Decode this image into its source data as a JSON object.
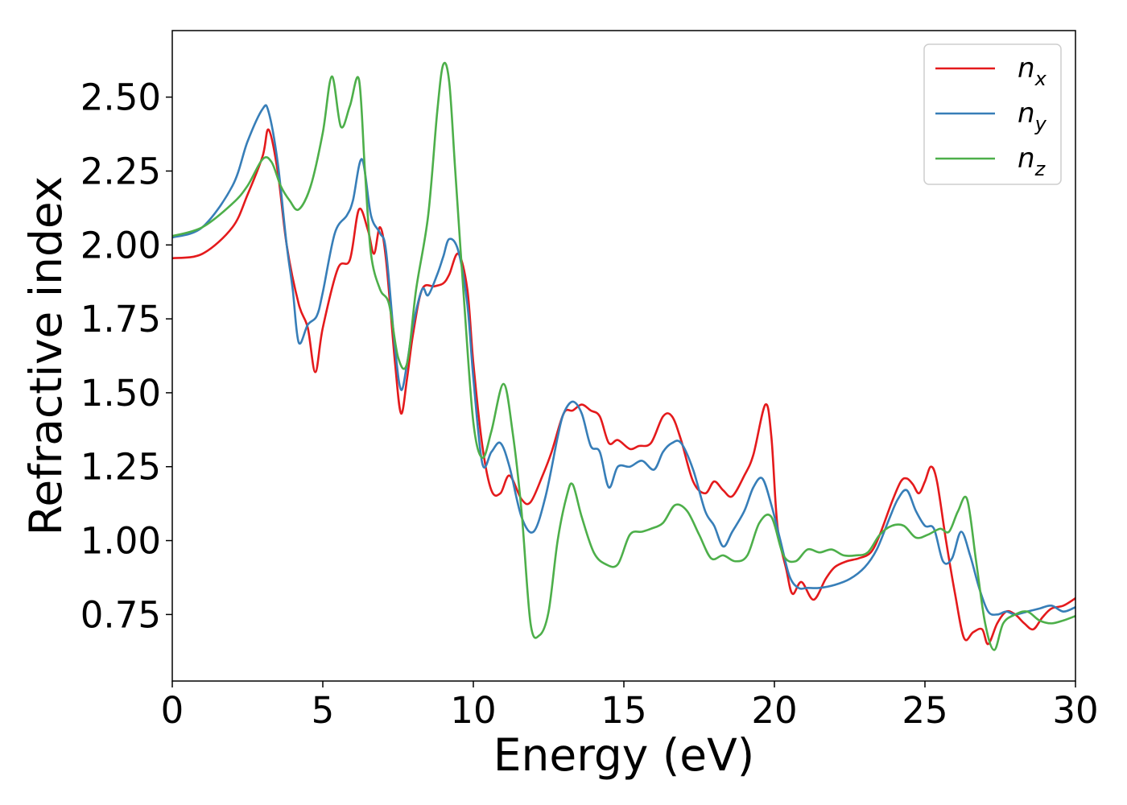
{
  "chart_data": {
    "type": "line",
    "title": "",
    "xlabel": "Energy (eV)",
    "ylabel": "Refractive index",
    "xlim": [
      0,
      30
    ],
    "ylim": [
      0.525,
      2.725
    ],
    "xticks": [
      0,
      5,
      10,
      15,
      20,
      25,
      30
    ],
    "xtick_labels": [
      "0",
      "5",
      "10",
      "15",
      "20",
      "25",
      "30"
    ],
    "yticks": [
      0.75,
      1.0,
      1.25,
      1.5,
      1.75,
      2.0,
      2.25,
      2.5
    ],
    "ytick_labels": [
      "0.75",
      "1.00",
      "1.25",
      "1.50",
      "1.75",
      "2.00",
      "2.25",
      "2.50"
    ],
    "grid": false,
    "legend_position": "top-right",
    "series": [
      {
        "name": "n_x",
        "legend_base": "n",
        "legend_sub": "x",
        "color": "#e41a1c",
        "x": [
          0,
          1,
          2,
          2.5,
          3.0,
          3.2,
          3.5,
          3.8,
          4.2,
          4.5,
          4.75,
          5.0,
          5.5,
          5.9,
          6.2,
          6.5,
          6.7,
          6.9,
          7.1,
          7.4,
          7.6,
          7.8,
          8.0,
          8.3,
          8.7,
          9.0,
          9.2,
          9.5,
          9.8,
          10.0,
          10.3,
          10.6,
          10.9,
          11.2,
          11.6,
          11.9,
          12.3,
          12.6,
          13.0,
          13.3,
          13.6,
          13.9,
          14.2,
          14.5,
          14.8,
          15.2,
          15.5,
          15.9,
          16.3,
          16.6,
          16.9,
          17.3,
          17.7,
          18.0,
          18.3,
          18.6,
          19.0,
          19.3,
          19.7,
          19.9,
          20.1,
          20.4,
          20.6,
          20.9,
          21.3,
          21.7,
          22.0,
          22.4,
          22.8,
          23.2,
          23.5,
          23.9,
          24.2,
          24.4,
          24.6,
          24.8,
          25.0,
          25.2,
          25.4,
          25.7,
          26.0,
          26.3,
          26.6,
          26.9,
          27.1,
          27.4,
          27.7,
          28.0,
          28.3,
          28.6,
          28.9,
          29.2,
          29.6,
          30.0
        ],
        "values": [
          1.955,
          1.97,
          2.06,
          2.17,
          2.3,
          2.39,
          2.25,
          2.0,
          1.8,
          1.72,
          1.57,
          1.72,
          1.92,
          1.95,
          2.12,
          2.05,
          1.97,
          2.06,
          1.95,
          1.6,
          1.43,
          1.55,
          1.7,
          1.85,
          1.86,
          1.87,
          1.9,
          1.97,
          1.85,
          1.6,
          1.32,
          1.17,
          1.16,
          1.22,
          1.14,
          1.13,
          1.22,
          1.3,
          1.43,
          1.44,
          1.46,
          1.44,
          1.42,
          1.33,
          1.34,
          1.31,
          1.32,
          1.33,
          1.42,
          1.42,
          1.34,
          1.2,
          1.16,
          1.2,
          1.17,
          1.15,
          1.22,
          1.29,
          1.46,
          1.35,
          1.05,
          0.9,
          0.82,
          0.86,
          0.8,
          0.87,
          0.91,
          0.93,
          0.94,
          0.96,
          1.02,
          1.13,
          1.2,
          1.21,
          1.19,
          1.16,
          1.2,
          1.25,
          1.2,
          1.0,
          0.82,
          0.67,
          0.69,
          0.7,
          0.65,
          0.72,
          0.76,
          0.75,
          0.72,
          0.7,
          0.74,
          0.77,
          0.78,
          0.805
        ]
      },
      {
        "name": "n_y",
        "legend_base": "n",
        "legend_sub": "y",
        "color": "#377eb8",
        "x": [
          0,
          1,
          2,
          2.5,
          3.0,
          3.2,
          3.5,
          3.8,
          4.0,
          4.2,
          4.5,
          4.8,
          5.0,
          5.4,
          5.8,
          6.0,
          6.3,
          6.6,
          6.9,
          7.1,
          7.4,
          7.6,
          7.8,
          8.0,
          8.3,
          8.5,
          8.8,
          9.0,
          9.2,
          9.5,
          9.8,
          10.0,
          10.3,
          10.6,
          10.9,
          11.2,
          11.6,
          12.0,
          12.4,
          12.8,
          13.0,
          13.3,
          13.6,
          13.9,
          14.2,
          14.5,
          14.8,
          15.2,
          15.6,
          16.0,
          16.3,
          16.6,
          16.9,
          17.3,
          17.7,
          18.0,
          18.3,
          18.6,
          19.0,
          19.3,
          19.6,
          19.9,
          20.2,
          20.5,
          20.8,
          21.1,
          21.5,
          22.0,
          22.5,
          23.0,
          23.4,
          23.8,
          24.1,
          24.4,
          24.7,
          25.0,
          25.3,
          25.6,
          25.9,
          26.2,
          26.5,
          26.8,
          27.1,
          27.4,
          27.7,
          28.0,
          28.4,
          28.8,
          29.2,
          29.6,
          30.0
        ],
        "values": [
          2.025,
          2.06,
          2.2,
          2.35,
          2.46,
          2.45,
          2.28,
          2.0,
          1.85,
          1.67,
          1.73,
          1.76,
          1.84,
          2.04,
          2.1,
          2.15,
          2.29,
          2.1,
          2.04,
          1.98,
          1.65,
          1.51,
          1.6,
          1.73,
          1.85,
          1.83,
          1.9,
          1.96,
          2.02,
          1.98,
          1.8,
          1.55,
          1.26,
          1.3,
          1.33,
          1.25,
          1.08,
          1.03,
          1.15,
          1.35,
          1.43,
          1.47,
          1.43,
          1.32,
          1.3,
          1.18,
          1.25,
          1.25,
          1.27,
          1.24,
          1.3,
          1.33,
          1.33,
          1.24,
          1.1,
          1.05,
          0.98,
          1.03,
          1.1,
          1.18,
          1.21,
          1.12,
          1.0,
          0.88,
          0.84,
          0.84,
          0.84,
          0.85,
          0.87,
          0.91,
          0.97,
          1.07,
          1.14,
          1.17,
          1.1,
          1.05,
          1.04,
          0.93,
          0.94,
          1.03,
          0.95,
          0.84,
          0.76,
          0.75,
          0.76,
          0.75,
          0.76,
          0.77,
          0.78,
          0.76,
          0.775
        ]
      },
      {
        "name": "n_z",
        "legend_base": "n",
        "legend_sub": "z",
        "color": "#4daf4a",
        "x": [
          0,
          1,
          2,
          2.5,
          3.0,
          3.3,
          3.6,
          3.9,
          4.2,
          4.6,
          5.0,
          5.3,
          5.6,
          5.9,
          6.2,
          6.4,
          6.6,
          6.9,
          7.2,
          7.5,
          7.8,
          8.1,
          8.5,
          8.8,
          9.0,
          9.2,
          9.4,
          9.7,
          10.0,
          10.3,
          10.6,
          11.0,
          11.3,
          11.6,
          11.9,
          12.2,
          12.5,
          12.8,
          13.1,
          13.3,
          13.6,
          14.0,
          14.4,
          14.8,
          15.2,
          15.6,
          15.9,
          16.3,
          16.7,
          17.1,
          17.5,
          17.9,
          18.3,
          18.7,
          19.1,
          19.5,
          19.9,
          20.3,
          20.7,
          21.1,
          21.5,
          21.9,
          22.3,
          22.7,
          23.1,
          23.5,
          23.9,
          24.3,
          24.7,
          25.1,
          25.5,
          25.8,
          26.1,
          26.4,
          26.7,
          27.0,
          27.3,
          27.6,
          28.0,
          28.4,
          28.8,
          29.2,
          29.6,
          30.0
        ],
        "values": [
          2.03,
          2.06,
          2.14,
          2.2,
          2.29,
          2.28,
          2.2,
          2.15,
          2.12,
          2.2,
          2.38,
          2.57,
          2.4,
          2.47,
          2.56,
          2.25,
          1.97,
          1.85,
          1.8,
          1.62,
          1.6,
          1.85,
          2.1,
          2.45,
          2.61,
          2.55,
          2.25,
          1.8,
          1.4,
          1.28,
          1.37,
          1.53,
          1.37,
          1.1,
          0.72,
          0.68,
          0.76,
          1.0,
          1.15,
          1.19,
          1.08,
          0.96,
          0.92,
          0.92,
          1.02,
          1.03,
          1.04,
          1.06,
          1.12,
          1.1,
          1.02,
          0.94,
          0.95,
          0.93,
          0.95,
          1.06,
          1.08,
          0.95,
          0.93,
          0.97,
          0.96,
          0.97,
          0.95,
          0.95,
          0.96,
          1.02,
          1.05,
          1.05,
          1.01,
          1.02,
          1.04,
          1.03,
          1.1,
          1.14,
          0.93,
          0.72,
          0.63,
          0.72,
          0.75,
          0.76,
          0.73,
          0.72,
          0.73,
          0.745
        ]
      }
    ]
  }
}
